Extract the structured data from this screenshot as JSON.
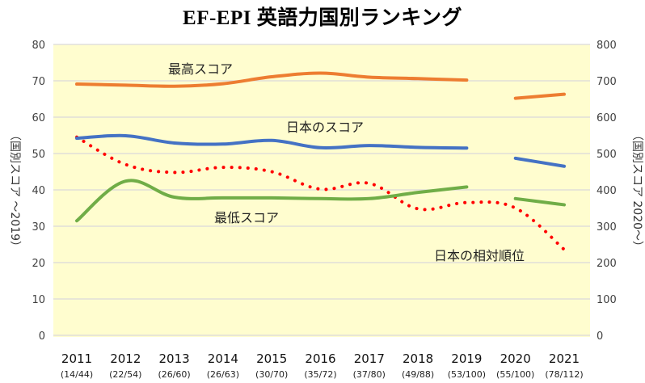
{
  "chart_data": {
    "type": "line",
    "title": "EF-EPI 英語力国別ランキング",
    "categories": [
      "2011",
      "2012",
      "2013",
      "2014",
      "2015",
      "2016",
      "2017",
      "2018",
      "2019",
      "2020",
      "2021"
    ],
    "category_sublabels": [
      "(14/44)",
      "(22/54)",
      "(26/60)",
      "(26/63)",
      "(30/70)",
      "(35/72)",
      "(37/80)",
      "(49/88)",
      "(53/100)",
      "(55/100)",
      "(78/112)"
    ],
    "ylabel_left": "（国別スコア ～2019）",
    "ylabel_right": "（国別スコア 2020～）",
    "ylim_left": [
      0,
      80
    ],
    "ylim_right": [
      0,
      800
    ],
    "yticks_left": [
      "0",
      "10",
      "20",
      "30",
      "40",
      "50",
      "60",
      "70",
      "80"
    ],
    "yticks_right": [
      "0",
      "100",
      "200",
      "300",
      "400",
      "500",
      "600",
      "700",
      "800"
    ],
    "grid": true,
    "legend": "none (inline annotations)",
    "series": [
      {
        "name": "最高スコア",
        "color": "#ED7D31",
        "style": "solid",
        "segments": [
          {
            "axis": "left",
            "values": [
              69.1,
              68.8,
              68.5,
              69.2,
              71.1,
              72.1,
              71.0,
              70.6,
              70.2,
              null,
              null
            ]
          },
          {
            "axis": "right",
            "values": [
              null,
              null,
              null,
              null,
              null,
              null,
              null,
              null,
              null,
              652,
              663
            ]
          }
        ]
      },
      {
        "name": "日本のスコア",
        "color": "#4472C4",
        "style": "solid",
        "segments": [
          {
            "axis": "left",
            "values": [
              54.2,
              54.9,
              52.9,
              52.6,
              53.6,
              51.6,
              52.2,
              51.7,
              51.5,
              null,
              null
            ]
          },
          {
            "axis": "right",
            "values": [
              null,
              null,
              null,
              null,
              null,
              null,
              null,
              null,
              null,
              487,
              465
            ]
          }
        ]
      },
      {
        "name": "最低スコア",
        "color": "#70AD47",
        "style": "solid",
        "segments": [
          {
            "axis": "left",
            "values": [
              31.5,
              42.4,
              38.0,
              37.8,
              37.8,
              37.6,
              37.6,
              39.3,
              40.8,
              null,
              null
            ]
          },
          {
            "axis": "right",
            "values": [
              null,
              null,
              null,
              null,
              null,
              null,
              null,
              null,
              null,
              376,
              359
            ]
          }
        ]
      },
      {
        "name": "日本の相対順位",
        "color": "#FF0000",
        "style": "dotted",
        "segments": [
          {
            "axis": "left",
            "values": [
              54.5,
              47.0,
              44.8,
              46.2,
              45.0,
              40.2,
              41.8,
              34.8,
              36.5,
              35.0,
              23.6
            ]
          }
        ]
      }
    ],
    "annotations": [
      {
        "text": "最高スコア",
        "near": "orange series, above 2013-2014"
      },
      {
        "text": "日本のスコア",
        "near": "blue series, above 2016-2017"
      },
      {
        "text": "最低スコア",
        "near": "green series, below 2015-2016"
      },
      {
        "text": "日本の相対順位",
        "near": "red series, near 2019-2021"
      }
    ]
  }
}
